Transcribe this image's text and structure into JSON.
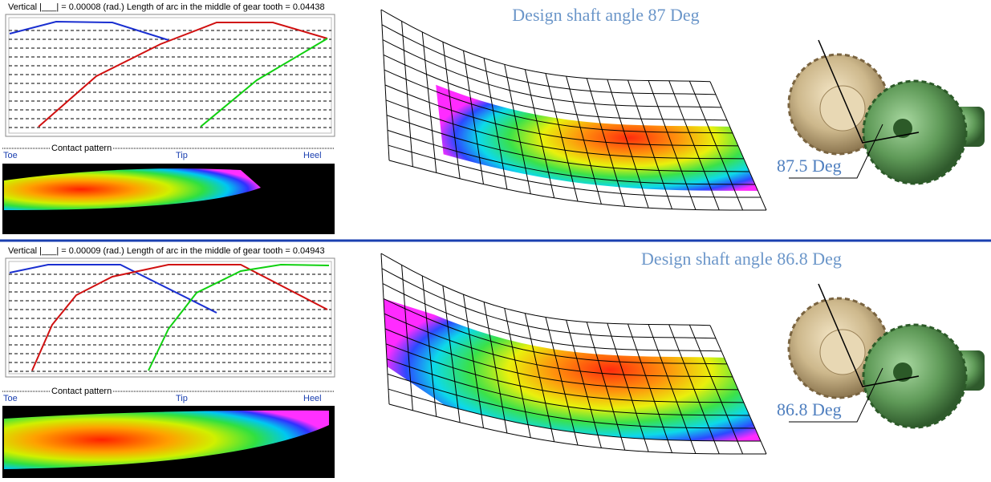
{
  "panels": [
    {
      "header": "Vertical |___| = 0.00008 (rad.) Length of arc in the middle of gear tooth = 0.04438",
      "pattern_label": "Contact pattern",
      "toe": "Toe",
      "tip": "Tip",
      "heel": "Heel",
      "title": "Design shaft angle 87 Deg",
      "angle_label": "87.5 Deg"
    },
    {
      "header": "Vertical |___| = 0.00009 (rad.) Length of arc in the middle of gear tooth = 0.04943",
      "pattern_label": "Contact pattern",
      "toe": "Toe",
      "tip": "Tip",
      "heel": "Heel",
      "title": "Design shaft angle 86.8 Deg",
      "angle_label": "86.8 Deg"
    }
  ]
}
